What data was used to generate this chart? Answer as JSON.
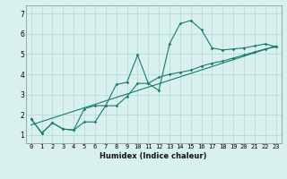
{
  "xlabel": "Humidex (Indice chaleur)",
  "bg_color": "#d8f0ee",
  "grid_color": "#b8dcd8",
  "line_color": "#1a7a6e",
  "x_ticks": [
    0,
    1,
    2,
    3,
    4,
    5,
    6,
    7,
    8,
    9,
    10,
    11,
    12,
    13,
    14,
    15,
    16,
    17,
    18,
    19,
    20,
    21,
    22,
    23
  ],
  "y_ticks": [
    1,
    2,
    3,
    4,
    5,
    6,
    7
  ],
  "ylim": [
    0.6,
    7.4
  ],
  "xlim": [
    -0.5,
    23.5
  ],
  "curve1_y": [
    1.8,
    1.1,
    1.6,
    1.3,
    1.25,
    2.3,
    2.45,
    2.45,
    3.5,
    3.6,
    4.95,
    3.55,
    3.2,
    5.5,
    6.5,
    6.65,
    6.2,
    5.3,
    5.2,
    5.25,
    5.3,
    5.4,
    5.5,
    5.35
  ],
  "curve2_y": [
    1.8,
    1.1,
    1.6,
    1.3,
    1.25,
    1.65,
    1.65,
    2.45,
    2.45,
    2.9,
    3.55,
    3.55,
    3.85,
    4.0,
    4.1,
    4.2,
    4.4,
    4.55,
    4.65,
    4.8,
    4.95,
    5.1,
    5.25,
    5.35
  ],
  "line_x": [
    0,
    23
  ],
  "line_y": [
    1.5,
    5.4
  ],
  "xlabel_fontsize": 6.0,
  "tick_fontsize": 5.0
}
